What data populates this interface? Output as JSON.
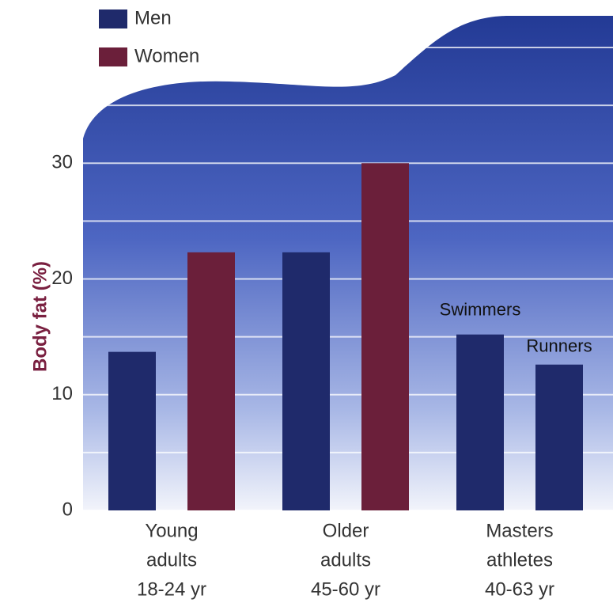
{
  "chart_data": {
    "type": "bar",
    "y_label": "Body fat (%)",
    "categories": [
      [
        "Young",
        "adults",
        "18-24 yr"
      ],
      [
        "Older",
        "adults",
        "45-60 yr"
      ],
      [
        "Masters",
        "athletes",
        "40-63 yr"
      ]
    ],
    "series": [
      {
        "name": "Men",
        "color": "#1f2a6b",
        "values": [
          13.7,
          22.3,
          15.2
        ],
        "labels": [
          null,
          null,
          "Swimmers"
        ]
      },
      {
        "name": "Women",
        "color": "#6b1f3a",
        "values": [
          22.3,
          30,
          null
        ]
      },
      {
        "name": "Runners",
        "color": "#1f2a6b",
        "values": [
          null,
          null,
          12.6
        ],
        "in_legend": false
      }
    ],
    "ylim": [
      0,
      40
    ],
    "yticks": [
      0,
      10,
      20,
      30
    ],
    "minor_grid": [
      5,
      15,
      25,
      35,
      40
    ],
    "grid": true
  }
}
